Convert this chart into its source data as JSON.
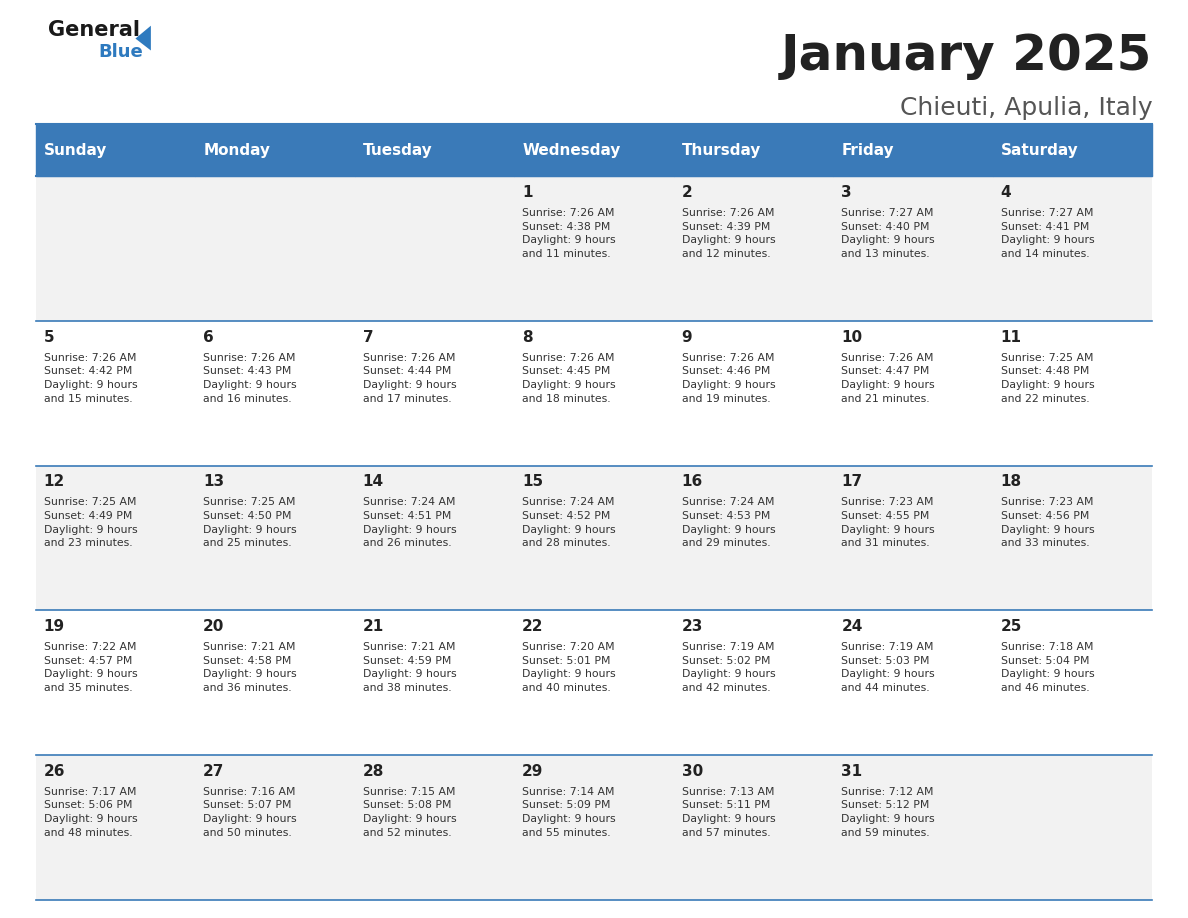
{
  "title": "January 2025",
  "subtitle": "Chieuti, Apulia, Italy",
  "days_of_week": [
    "Sunday",
    "Monday",
    "Tuesday",
    "Wednesday",
    "Thursday",
    "Friday",
    "Saturday"
  ],
  "header_bg": "#3a7ab8",
  "header_text": "#ffffff",
  "row_bg_odd": "#f2f2f2",
  "row_bg_even": "#ffffff",
  "cell_border": "#3a7ab8",
  "day_num_color": "#222222",
  "cell_text_color": "#333333",
  "title_color": "#222222",
  "subtitle_color": "#555555",
  "calendar_data": [
    [
      {
        "day": null,
        "info": null
      },
      {
        "day": null,
        "info": null
      },
      {
        "day": null,
        "info": null
      },
      {
        "day": 1,
        "info": "Sunrise: 7:26 AM\nSunset: 4:38 PM\nDaylight: 9 hours\nand 11 minutes."
      },
      {
        "day": 2,
        "info": "Sunrise: 7:26 AM\nSunset: 4:39 PM\nDaylight: 9 hours\nand 12 minutes."
      },
      {
        "day": 3,
        "info": "Sunrise: 7:27 AM\nSunset: 4:40 PM\nDaylight: 9 hours\nand 13 minutes."
      },
      {
        "day": 4,
        "info": "Sunrise: 7:27 AM\nSunset: 4:41 PM\nDaylight: 9 hours\nand 14 minutes."
      }
    ],
    [
      {
        "day": 5,
        "info": "Sunrise: 7:26 AM\nSunset: 4:42 PM\nDaylight: 9 hours\nand 15 minutes."
      },
      {
        "day": 6,
        "info": "Sunrise: 7:26 AM\nSunset: 4:43 PM\nDaylight: 9 hours\nand 16 minutes."
      },
      {
        "day": 7,
        "info": "Sunrise: 7:26 AM\nSunset: 4:44 PM\nDaylight: 9 hours\nand 17 minutes."
      },
      {
        "day": 8,
        "info": "Sunrise: 7:26 AM\nSunset: 4:45 PM\nDaylight: 9 hours\nand 18 minutes."
      },
      {
        "day": 9,
        "info": "Sunrise: 7:26 AM\nSunset: 4:46 PM\nDaylight: 9 hours\nand 19 minutes."
      },
      {
        "day": 10,
        "info": "Sunrise: 7:26 AM\nSunset: 4:47 PM\nDaylight: 9 hours\nand 21 minutes."
      },
      {
        "day": 11,
        "info": "Sunrise: 7:25 AM\nSunset: 4:48 PM\nDaylight: 9 hours\nand 22 minutes."
      }
    ],
    [
      {
        "day": 12,
        "info": "Sunrise: 7:25 AM\nSunset: 4:49 PM\nDaylight: 9 hours\nand 23 minutes."
      },
      {
        "day": 13,
        "info": "Sunrise: 7:25 AM\nSunset: 4:50 PM\nDaylight: 9 hours\nand 25 minutes."
      },
      {
        "day": 14,
        "info": "Sunrise: 7:24 AM\nSunset: 4:51 PM\nDaylight: 9 hours\nand 26 minutes."
      },
      {
        "day": 15,
        "info": "Sunrise: 7:24 AM\nSunset: 4:52 PM\nDaylight: 9 hours\nand 28 minutes."
      },
      {
        "day": 16,
        "info": "Sunrise: 7:24 AM\nSunset: 4:53 PM\nDaylight: 9 hours\nand 29 minutes."
      },
      {
        "day": 17,
        "info": "Sunrise: 7:23 AM\nSunset: 4:55 PM\nDaylight: 9 hours\nand 31 minutes."
      },
      {
        "day": 18,
        "info": "Sunrise: 7:23 AM\nSunset: 4:56 PM\nDaylight: 9 hours\nand 33 minutes."
      }
    ],
    [
      {
        "day": 19,
        "info": "Sunrise: 7:22 AM\nSunset: 4:57 PM\nDaylight: 9 hours\nand 35 minutes."
      },
      {
        "day": 20,
        "info": "Sunrise: 7:21 AM\nSunset: 4:58 PM\nDaylight: 9 hours\nand 36 minutes."
      },
      {
        "day": 21,
        "info": "Sunrise: 7:21 AM\nSunset: 4:59 PM\nDaylight: 9 hours\nand 38 minutes."
      },
      {
        "day": 22,
        "info": "Sunrise: 7:20 AM\nSunset: 5:01 PM\nDaylight: 9 hours\nand 40 minutes."
      },
      {
        "day": 23,
        "info": "Sunrise: 7:19 AM\nSunset: 5:02 PM\nDaylight: 9 hours\nand 42 minutes."
      },
      {
        "day": 24,
        "info": "Sunrise: 7:19 AM\nSunset: 5:03 PM\nDaylight: 9 hours\nand 44 minutes."
      },
      {
        "day": 25,
        "info": "Sunrise: 7:18 AM\nSunset: 5:04 PM\nDaylight: 9 hours\nand 46 minutes."
      }
    ],
    [
      {
        "day": 26,
        "info": "Sunrise: 7:17 AM\nSunset: 5:06 PM\nDaylight: 9 hours\nand 48 minutes."
      },
      {
        "day": 27,
        "info": "Sunrise: 7:16 AM\nSunset: 5:07 PM\nDaylight: 9 hours\nand 50 minutes."
      },
      {
        "day": 28,
        "info": "Sunrise: 7:15 AM\nSunset: 5:08 PM\nDaylight: 9 hours\nand 52 minutes."
      },
      {
        "day": 29,
        "info": "Sunrise: 7:14 AM\nSunset: 5:09 PM\nDaylight: 9 hours\nand 55 minutes."
      },
      {
        "day": 30,
        "info": "Sunrise: 7:13 AM\nSunset: 5:11 PM\nDaylight: 9 hours\nand 57 minutes."
      },
      {
        "day": 31,
        "info": "Sunrise: 7:12 AM\nSunset: 5:12 PM\nDaylight: 9 hours\nand 59 minutes."
      },
      {
        "day": null,
        "info": null
      }
    ]
  ]
}
